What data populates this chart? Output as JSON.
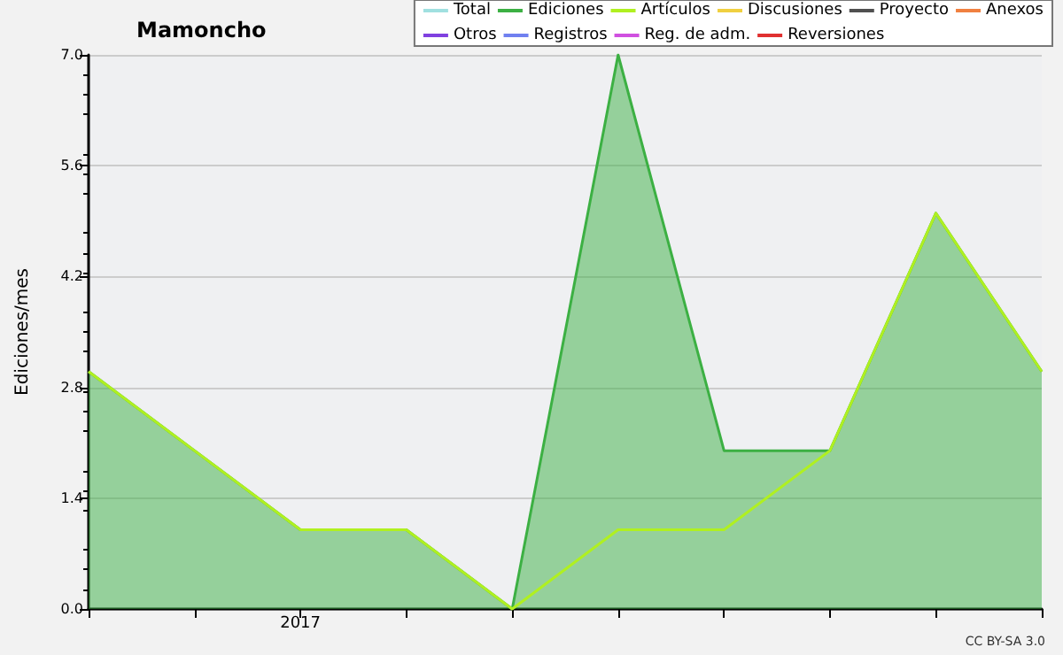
{
  "chart_data": {
    "type": "area",
    "title": "Mamoncho",
    "ylabel": "Ediciones/mes",
    "categories": [
      null,
      null,
      "2017",
      null,
      null,
      null,
      null,
      null,
      null,
      null
    ],
    "series": [
      {
        "name": "Total",
        "color": "#a0e0e0",
        "type": "line",
        "values": [
          null,
          null,
          null,
          null,
          null,
          null,
          null,
          null,
          null,
          null
        ]
      },
      {
        "name": "Ediciones",
        "color": "#3cb043",
        "values": [
          3,
          2,
          1,
          1,
          0,
          7,
          2,
          2,
          5,
          3
        ]
      },
      {
        "name": "Artículos",
        "color": "#b0f020",
        "type": "line",
        "values": [
          3,
          2,
          1,
          1,
          0,
          1,
          1,
          2,
          5,
          3
        ]
      },
      {
        "name": "Discusiones",
        "color": "#f0d040",
        "type": "line",
        "values": [
          null,
          null,
          null,
          null,
          null,
          null,
          null,
          null,
          null,
          null
        ]
      },
      {
        "name": "Proyecto",
        "color": "#505050",
        "type": "line",
        "values": [
          null,
          null,
          null,
          null,
          null,
          null,
          null,
          null,
          null,
          null
        ]
      },
      {
        "name": "Anexos",
        "color": "#f08040",
        "type": "line",
        "values": [
          null,
          null,
          null,
          null,
          null,
          null,
          null,
          null,
          null,
          null
        ]
      },
      {
        "name": "Otros",
        "color": "#8040e0",
        "type": "line",
        "values": [
          null,
          null,
          null,
          null,
          null,
          null,
          null,
          null,
          null,
          null
        ]
      },
      {
        "name": "Registros",
        "color": "#7080f0",
        "type": "line",
        "values": [
          null,
          null,
          null,
          null,
          null,
          null,
          null,
          null,
          null,
          null
        ]
      },
      {
        "name": "Reg. de adm.",
        "color": "#d050e0",
        "type": "line",
        "values": [
          null,
          null,
          null,
          null,
          null,
          null,
          null,
          null,
          null,
          null
        ]
      },
      {
        "name": "Reversiones",
        "color": "#e03030",
        "type": "line",
        "values": [
          null,
          null,
          null,
          null,
          null,
          null,
          null,
          null,
          null,
          null
        ]
      }
    ],
    "ylim": [
      0,
      7
    ],
    "yticks": [
      {
        "value": 0,
        "label": "0.0"
      },
      {
        "value": 1.4,
        "label": "1.4"
      },
      {
        "value": 2.8,
        "label": "2.8"
      },
      {
        "value": 4.2,
        "label": "4.2"
      },
      {
        "value": 5.6,
        "label": "5.6"
      },
      {
        "value": 7,
        "label": "7.0"
      }
    ],
    "grid": "y",
    "legend": "top right",
    "marker": "none",
    "annotations": [
      "CC BY-SA 3.0"
    ]
  }
}
